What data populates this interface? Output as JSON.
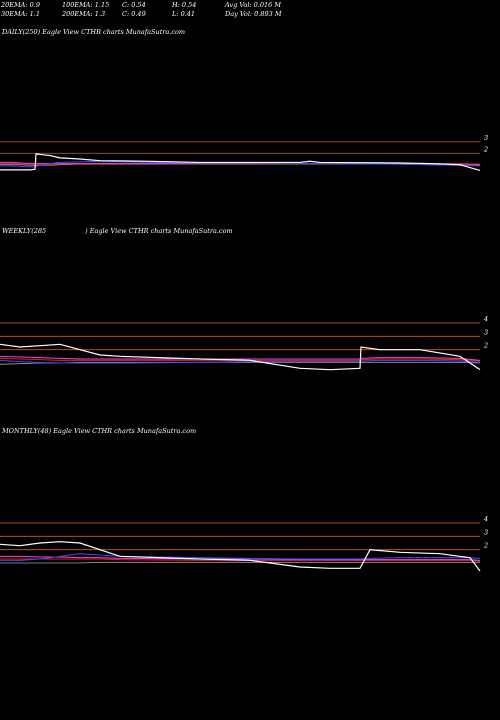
{
  "header": {
    "row1": [
      "20EMA: 0.9",
      "100EMA: 1.15",
      "C: 0.54",
      "H: 0.54",
      "Avg Vol: 0.016  M"
    ],
    "row2": [
      "30EMA: 1.1",
      "200EMA: 1.3",
      "C: 0.49",
      "L: 0.41",
      "Day Vol: 0.893  M"
    ]
  },
  "panels": [
    {
      "title": "DAILY(250) Eagle   View  CTHR charts MunafaSutra.com",
      "ticks": [
        {
          "value": 3,
          "label": "3"
        },
        {
          "value": 2,
          "label": "2"
        }
      ]
    },
    {
      "title_a": "WEEKLY(285",
      "title_b": ") Eagle   View  CTHR charts MunafaSutra.com",
      "ticks": [
        {
          "value": 4,
          "label": "4"
        },
        {
          "value": 3,
          "label": "3"
        },
        {
          "value": 2,
          "label": "2"
        }
      ]
    },
    {
      "title": "MONTHLY(48) Eagle   View  CTHR charts MunafaSutra.com",
      "ticks": [
        {
          "value": 4,
          "label": "4"
        },
        {
          "value": 3,
          "label": "3"
        },
        {
          "value": 2,
          "label": "2"
        }
      ]
    }
  ],
  "colors": {
    "price": "#ffffff",
    "ema_blue": "#3050ff",
    "ema_pink": "#ff40d0",
    "ema_red": "#e02020",
    "ema_gray": "#a0a0a0",
    "ref_line": "#d06010"
  },
  "chart_data": [
    {
      "type": "line",
      "title": "DAILY(250)",
      "ylim": [
        0.1,
        3.6
      ],
      "x": [
        0,
        10,
        20,
        30,
        35,
        36,
        40,
        50,
        60,
        80,
        100,
        150,
        200,
        250,
        300,
        310,
        320,
        400,
        430,
        460,
        480
      ],
      "series": [
        {
          "values": [
            0.55,
            0.55,
            0.55,
            0.55,
            0.6,
            1.95,
            1.9,
            1.8,
            1.6,
            1.5,
            1.35,
            1.3,
            1.2,
            1.2,
            1.2,
            1.3,
            1.2,
            1.15,
            1.1,
            1.0,
            0.5
          ]
        },
        {
          "values": [
            0.9,
            0.9,
            0.85,
            0.82,
            0.8,
            0.85,
            0.95,
            1.1,
            1.2,
            1.25,
            1.3,
            1.2,
            1.15,
            1.15,
            1.1,
            1.1,
            1.1,
            1.05,
            1.0,
            0.95,
            0.9
          ]
        },
        {
          "values": [
            1.2,
            1.2,
            1.15,
            1.1,
            1.1,
            1.1,
            1.1,
            1.1,
            1.1,
            1.1,
            1.1,
            1.1,
            1.1,
            1.1,
            1.1,
            1.1,
            1.1,
            1.05,
            1.0,
            0.95,
            0.95
          ]
        },
        {
          "values": [
            1.1,
            1.1,
            1.05,
            1.0,
            1.0,
            1.0,
            1.0,
            1.0,
            1.05,
            1.1,
            1.1,
            1.1,
            1.1,
            1.1,
            1.1,
            1.1,
            1.1,
            1.1,
            1.1,
            1.1,
            1.05
          ]
        },
        {
          "values": [
            1.0,
            1.0,
            1.0,
            0.95,
            0.95,
            0.95,
            0.95,
            0.95,
            1.0,
            1.05,
            1.05,
            1.05,
            1.05,
            1.05,
            1.05,
            1.05,
            1.05,
            1.05,
            1.05,
            1.05,
            1.0
          ]
        }
      ]
    },
    {
      "type": "line",
      "title": "WEEKLY(285",
      "ylim": [
        0.1,
        4.6
      ],
      "x": [
        0,
        20,
        40,
        60,
        80,
        100,
        120,
        200,
        250,
        300,
        330,
        360,
        361,
        380,
        420,
        460,
        480
      ],
      "series": [
        {
          "values": [
            2.4,
            2.2,
            2.3,
            2.4,
            2.0,
            1.6,
            1.5,
            1.3,
            1.2,
            0.6,
            0.5,
            0.6,
            2.2,
            2.0,
            2.0,
            1.5,
            0.5
          ]
        },
        {
          "values": [
            1.2,
            1.1,
            1.05,
            1.0,
            1.0,
            1.0,
            1.0,
            1.05,
            1.1,
            1.1,
            1.1,
            1.1,
            1.15,
            1.2,
            1.2,
            1.15,
            1.05
          ]
        },
        {
          "values": [
            1.5,
            1.45,
            1.4,
            1.35,
            1.3,
            1.3,
            1.3,
            1.3,
            1.3,
            1.3,
            1.3,
            1.3,
            1.35,
            1.4,
            1.4,
            1.35,
            1.2
          ]
        },
        {
          "values": [
            1.35,
            1.3,
            1.25,
            1.2,
            1.2,
            1.2,
            1.2,
            1.2,
            1.2,
            1.2,
            1.2,
            1.2,
            1.25,
            1.3,
            1.3,
            1.25,
            1.15
          ]
        },
        {
          "values": [
            0.9,
            0.95,
            1.0,
            1.0,
            1.05,
            1.05,
            1.05,
            1.05,
            1.05,
            1.05,
            1.05,
            1.05,
            1.05,
            1.05,
            1.05,
            1.05,
            1.0
          ]
        }
      ]
    },
    {
      "type": "line",
      "title": "MONTHLY(48)",
      "ylim": [
        0.1,
        4.6
      ],
      "x": [
        0,
        20,
        40,
        60,
        80,
        100,
        120,
        200,
        250,
        300,
        330,
        360,
        370,
        400,
        440,
        470,
        480
      ],
      "series": [
        {
          "values": [
            2.4,
            2.3,
            2.5,
            2.6,
            2.5,
            2.0,
            1.5,
            1.3,
            1.2,
            0.7,
            0.6,
            0.6,
            2.0,
            1.8,
            1.7,
            1.4,
            0.4
          ]
        },
        {
          "values": [
            1.2,
            1.2,
            1.3,
            1.5,
            1.7,
            1.6,
            1.5,
            1.4,
            1.35,
            1.3,
            1.3,
            1.3,
            1.35,
            1.4,
            1.4,
            1.4,
            1.35
          ]
        },
        {
          "values": [
            1.5,
            1.5,
            1.45,
            1.45,
            1.4,
            1.4,
            1.35,
            1.3,
            1.3,
            1.25,
            1.25,
            1.25,
            1.25,
            1.25,
            1.25,
            1.25,
            1.2
          ]
        },
        {
          "values": [
            1.3,
            1.3,
            1.3,
            1.3,
            1.3,
            1.3,
            1.25,
            1.2,
            1.2,
            1.2,
            1.2,
            1.2,
            1.2,
            1.2,
            1.2,
            1.2,
            1.15
          ]
        },
        {
          "values": [
            1.0,
            1.0,
            1.0,
            1.0,
            1.0,
            1.05,
            1.05,
            1.05,
            1.05,
            1.05,
            1.05,
            1.05,
            1.05,
            1.05,
            1.05,
            1.05,
            1.05
          ]
        }
      ]
    }
  ]
}
